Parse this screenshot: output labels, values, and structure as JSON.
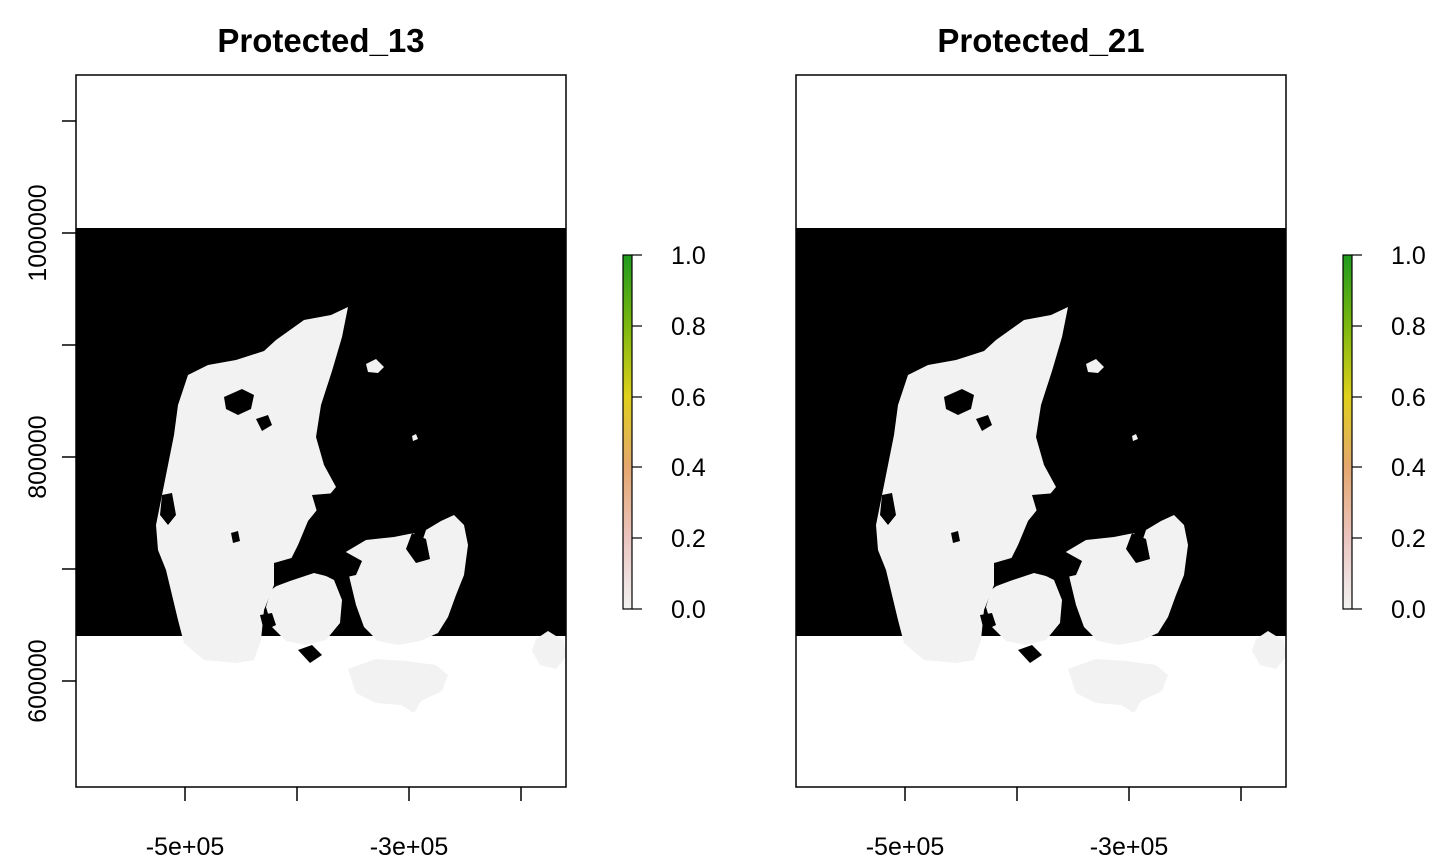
{
  "colors": {
    "background": "#ffffff",
    "sea": "#000000",
    "land_unprotected": "#f2f2f2",
    "protected": "#1e9a1e",
    "frame": "#000000"
  },
  "legend_scale": {
    "ticks": [
      "0.0",
      "0.2",
      "0.4",
      "0.6",
      "0.8",
      "1.0"
    ],
    "colors": [
      "#f2f2f2",
      "#ebc5c0",
      "#e4a76f",
      "#e0d01a",
      "#7cb80e",
      "#1e9a1e"
    ]
  },
  "panels": [
    {
      "id": "left",
      "title": "Protected_13"
    },
    {
      "id": "right",
      "title": "Protected_21"
    }
  ],
  "axes": {
    "x_tick_labels": [
      "-5e+05",
      "-3e+05"
    ],
    "y_tick_labels": [
      "1000000",
      "800000",
      "600000"
    ]
  },
  "chart_data": {
    "type": "heatmap",
    "layers": [
      {
        "name": "Protected_13",
        "value_range": [
          0,
          1
        ]
      },
      {
        "name": "Protected_21",
        "value_range": [
          0,
          1
        ]
      }
    ],
    "x_ticks": [
      -500000,
      -400000,
      -300000,
      -200000
    ],
    "x_tick_labels": [
      "-5e+05",
      "-3e+05"
    ],
    "y_ticks": [
      600000,
      700000,
      800000,
      900000,
      1000000,
      1100000
    ],
    "y_tick_labels": [
      "1000000",
      "800000",
      "600000"
    ],
    "legend_ticks": [
      0,
      0.2,
      0.4,
      0.6,
      0.8,
      1.0
    ],
    "legend_placement": "right of each panel",
    "grid": false
  }
}
